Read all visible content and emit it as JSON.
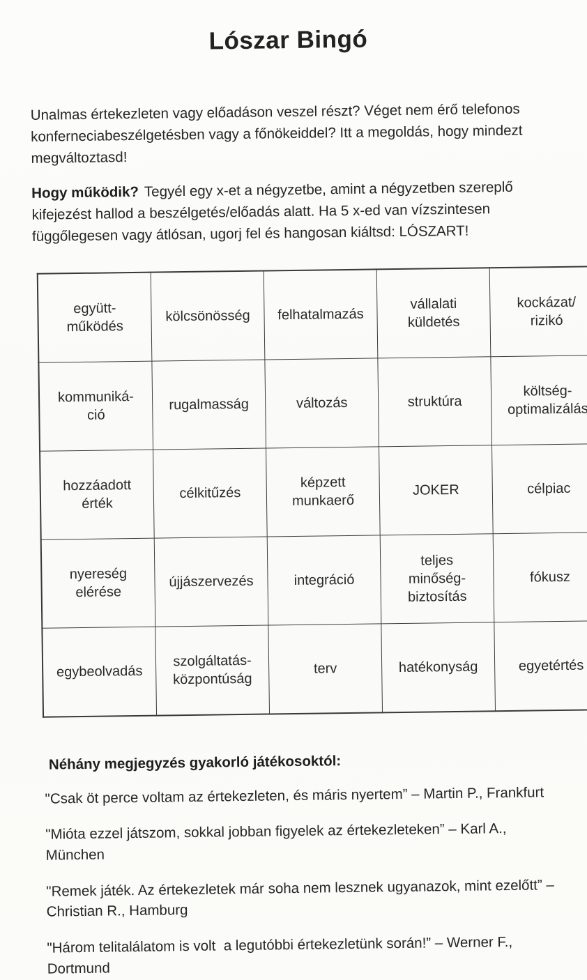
{
  "page": {
    "title": "Lószar Bingó",
    "intro": "Unalmas értekezleten vagy előadáson veszel részt? Véget nem érő telefonos konferneciabeszélgetésben vagy a főnökeiddel? Itt a megoldás, hogy mindezt megváltoztasd!",
    "how_label": "Hogy működik?",
    "how_text": "Tegyél egy x-et a négyzetbe, amint a négyzetben szereplő kifejezést hallod a beszélgetés/előadás alatt. Ha 5 x-ed van vízszintesen függőlegesen vagy átlósan, ugorj fel és hangosan kiáltsd: LÓSZART!"
  },
  "grid": {
    "rows": [
      [
        "együtt-\nműködés",
        "kölcsönösség",
        "felhatalmazás",
        "vállalati\nküldetés",
        "kockázat/\nrizikó"
      ],
      [
        "kommuniká-\nció",
        "rugalmasság",
        "változás",
        "struktúra",
        "költség-\noptimalizálás"
      ],
      [
        "hozzáadott\nérték",
        "célkitűzés",
        "képzett\nmunkaerő",
        "JOKER",
        "célpiac"
      ],
      [
        "nyereség\nelérése",
        "újjászervezés",
        "integráció",
        "teljes\nminőség-\nbiztosítás",
        "fókusz"
      ],
      [
        "egybeolvadás",
        "szolgáltatás-\nközpontúság",
        "terv",
        "hatékonyság",
        "egyetértés"
      ]
    ]
  },
  "testimonials": {
    "heading": "Néhány megjegyzés gyakorló játékosoktól:",
    "quotes": [
      "\"Csak öt perce voltam az értekezleten, és máris nyertem” – Martin P., Frankfurt",
      "\"Mióta ezzel játszom, sokkal jobban figyelek az értekezleteken” – Karl A., München",
      "\"Remek játék. Az értekezletek már soha nem lesznek ugyanazok, mint ezelőtt” – Christian R., Hamburg",
      "\"Három telitalálatom is volt  a legutóbbi értekezletünk során!” – Werner F., Dortmund"
    ]
  }
}
